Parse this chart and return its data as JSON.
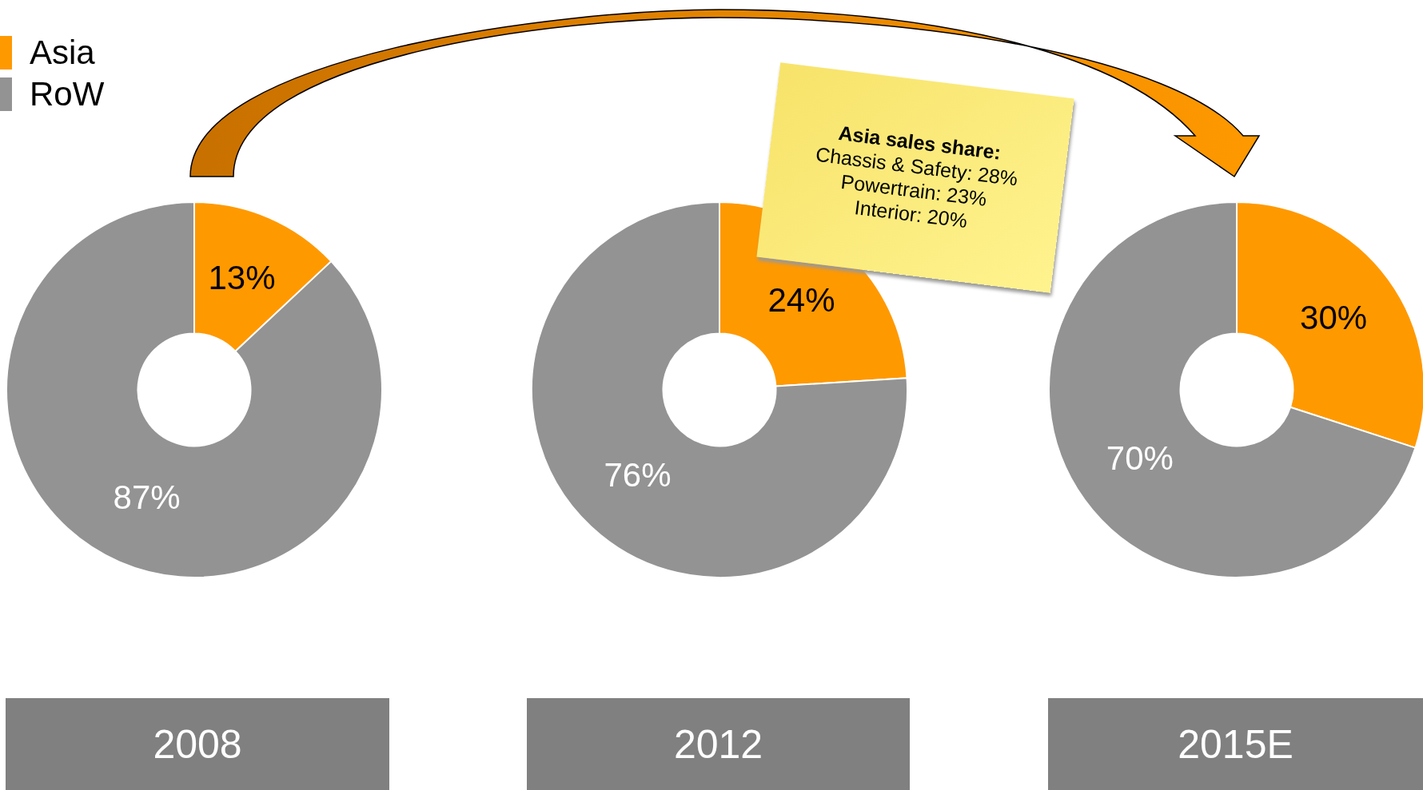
{
  "chart_data": [
    {
      "type": "donut",
      "title": "2008",
      "categories": [
        "Asia",
        "RoW"
      ],
      "values": [
        13,
        87
      ],
      "value_labels": [
        "13%",
        "87%"
      ],
      "colors": [
        "#ff9900",
        "#939393"
      ],
      "legend": "top left"
    },
    {
      "type": "donut",
      "title": "2012",
      "categories": [
        null,
        null
      ],
      "values": [
        24,
        76
      ],
      "value_labels": [
        "24%",
        "76%"
      ],
      "colors": [
        "#ff9900",
        "#939393"
      ],
      "annotations": [
        "Asia sales share:",
        "Chassis & Safety: 28%",
        "Powertrain: 23%",
        "Interior: 20%"
      ]
    },
    {
      "type": "donut",
      "title": "2015E",
      "categories": [
        null,
        null
      ],
      "values": [
        30,
        70
      ],
      "value_labels": [
        "30%",
        "70%"
      ],
      "colors": [
        "#ff9900",
        "#939393"
      ]
    }
  ]
}
